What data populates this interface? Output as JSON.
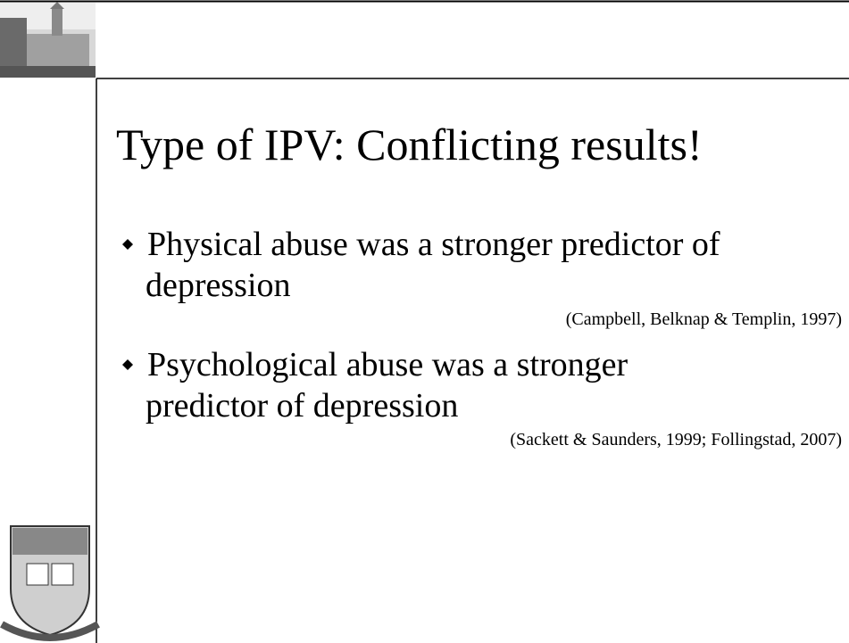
{
  "slide": {
    "title": "Type of IPV: Conflicting results!",
    "bullets": [
      {
        "lines": [
          "Physical abuse was a stronger predictor of",
          "depression"
        ],
        "citation": "(Campbell, Belknap & Templin, 1997)"
      },
      {
        "lines": [
          "Psychological abuse was a stronger",
          "predictor of depression"
        ],
        "citation": "(Sackett & Saunders, 1999; Follingstad, 2007)"
      }
    ]
  }
}
